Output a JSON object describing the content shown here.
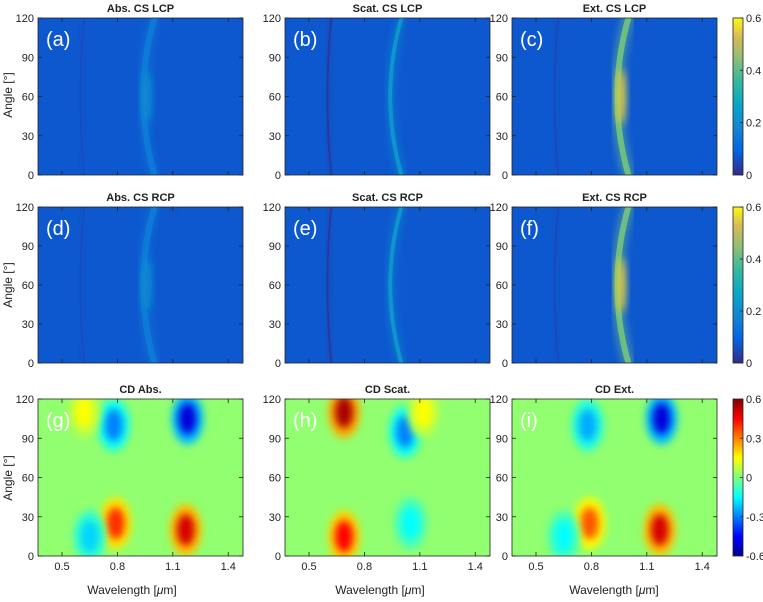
{
  "figure": {
    "rows": [
      {
        "colorbar": {
          "ticks": [
            "0.6",
            "0.4",
            "0.2",
            "0"
          ]
        }
      },
      {
        "colorbar": {
          "ticks": [
            "0.6",
            "0.4",
            "0.2",
            "0"
          ]
        }
      },
      {
        "colorbar": {
          "ticks": [
            "0.6",
            "0.3",
            "0",
            "-0.3",
            "-0.6"
          ]
        }
      }
    ],
    "ylabel": "Angle [°]",
    "ytick_labels": [
      "0",
      "30",
      "60",
      "90",
      "120"
    ],
    "xtick_labels": [
      "0.5",
      "0.8",
      "1.1",
      "1.4"
    ],
    "xlabel_prefix": "Wavelength [",
    "xlabel_mu": "μ",
    "xlabel_suffix": "m]",
    "panels": [
      {
        "title": "Abs. CS LCP",
        "tag": "(a)"
      },
      {
        "title": "Scat. CS LCP",
        "tag": "(b)"
      },
      {
        "title": "Ext. CS LCP",
        "tag": "(c)"
      },
      {
        "title": "Abs. CS RCP",
        "tag": "(d)"
      },
      {
        "title": "Scat. CS RCP",
        "tag": "(e)"
      },
      {
        "title": "Ext. CS RCP",
        "tag": "(f)"
      },
      {
        "title": "CD Abs.",
        "tag": "(g)"
      },
      {
        "title": "CD Scat.",
        "tag": "(h)"
      },
      {
        "title": "CD Ext.",
        "tag": "(i)"
      }
    ]
  },
  "chart_data": [
    {
      "type": "heatmap",
      "title": "Abs. CS LCP",
      "tag": "(a)",
      "xlabel": "",
      "ylabel": "Angle [°]",
      "xlim": [
        0.37,
        1.48
      ],
      "ylim": [
        0,
        120
      ],
      "colormap": "parula",
      "clim": [
        0,
        0.6
      ],
      "features": [
        {
          "kind": "ridge",
          "x_at_angle": {
            "0": 1.0,
            "60": 0.94,
            "120": 1.0
          },
          "peak_value": 0.2,
          "width": 0.045,
          "peak_angle": 60
        },
        {
          "kind": "ridge",
          "x_at_angle": {
            "0": 0.62,
            "60": 0.6,
            "120": 0.62
          },
          "peak_value": 0.07,
          "width": 0.012
        },
        {
          "kind": "ridge",
          "x_at_angle": {
            "30": 1.02,
            "0": 1.1
          },
          "peak_value": 0.09,
          "width": 0.03,
          "angle_range": [
            0,
            45
          ]
        }
      ]
    },
    {
      "type": "heatmap",
      "title": "Scat. CS LCP",
      "tag": "(b)",
      "xlabel": "",
      "ylabel": "",
      "xlim": [
        0.37,
        1.48
      ],
      "ylim": [
        0,
        120
      ],
      "colormap": "parula",
      "clim": [
        0,
        0.6
      ],
      "features": [
        {
          "kind": "ridge",
          "x_at_angle": {
            "0": 1.0,
            "60": 0.94,
            "120": 1.0
          },
          "peak_value": 0.3,
          "width": 0.03
        },
        {
          "kind": "ridge",
          "x_at_angle": {
            "0": 0.62,
            "60": 0.6,
            "120": 0.62
          },
          "peak_value": 0.03,
          "width": 0.015
        }
      ]
    },
    {
      "type": "heatmap",
      "title": "Ext. CS LCP",
      "tag": "(c)",
      "xlabel": "",
      "ylabel": "",
      "xlim": [
        0.37,
        1.48
      ],
      "ylim": [
        0,
        120
      ],
      "colormap": "parula",
      "clim": [
        0,
        0.6
      ],
      "features": [
        {
          "kind": "ridge",
          "x_at_angle": {
            "0": 1.0,
            "60": 0.94,
            "120": 1.0
          },
          "peak_value": 0.55,
          "width": 0.045,
          "peak_angle": 60
        },
        {
          "kind": "ridge",
          "x_at_angle": {
            "0": 0.62,
            "60": 0.6,
            "120": 0.62
          },
          "peak_value": 0.06,
          "width": 0.012
        }
      ]
    },
    {
      "type": "heatmap",
      "title": "Abs. CS RCP",
      "tag": "(d)",
      "xlabel": "",
      "ylabel": "Angle [°]",
      "xlim": [
        0.37,
        1.48
      ],
      "ylim": [
        0,
        120
      ],
      "colormap": "parula",
      "clim": [
        0,
        0.6
      ],
      "features": [
        {
          "kind": "ridge",
          "x_at_angle": {
            "0": 1.0,
            "60": 0.94,
            "120": 1.0
          },
          "peak_value": 0.2,
          "width": 0.045,
          "peak_angle": 60
        },
        {
          "kind": "ridge",
          "x_at_angle": {
            "0": 0.62,
            "60": 0.6,
            "120": 0.62
          },
          "peak_value": 0.07,
          "width": 0.012
        },
        {
          "kind": "ridge",
          "x_at_angle": {
            "90": 1.02,
            "120": 1.1
          },
          "peak_value": 0.09,
          "width": 0.03,
          "angle_range": [
            75,
            120
          ]
        }
      ]
    },
    {
      "type": "heatmap",
      "title": "Scat. CS RCP",
      "tag": "(e)",
      "xlabel": "",
      "ylabel": "",
      "xlim": [
        0.37,
        1.48
      ],
      "ylim": [
        0,
        120
      ],
      "colormap": "parula",
      "clim": [
        0,
        0.6
      ],
      "features": [
        {
          "kind": "ridge",
          "x_at_angle": {
            "0": 1.0,
            "60": 0.94,
            "120": 1.0
          },
          "peak_value": 0.3,
          "width": 0.03
        },
        {
          "kind": "ridge",
          "x_at_angle": {
            "0": 0.62,
            "60": 0.6,
            "120": 0.62
          },
          "peak_value": 0.03,
          "width": 0.015
        }
      ]
    },
    {
      "type": "heatmap",
      "title": "Ext. CS RCP",
      "tag": "(f)",
      "xlabel": "",
      "ylabel": "",
      "xlim": [
        0.37,
        1.48
      ],
      "ylim": [
        0,
        120
      ],
      "colormap": "parula",
      "clim": [
        0,
        0.6
      ],
      "features": [
        {
          "kind": "ridge",
          "x_at_angle": {
            "0": 1.0,
            "60": 0.94,
            "120": 1.0
          },
          "peak_value": 0.55,
          "width": 0.045,
          "peak_angle": 60
        },
        {
          "kind": "ridge",
          "x_at_angle": {
            "0": 0.62,
            "60": 0.6,
            "120": 0.62
          },
          "peak_value": 0.06,
          "width": 0.012
        }
      ]
    },
    {
      "type": "heatmap",
      "title": "CD Abs.",
      "tag": "(g)",
      "xlabel": "Wavelength [μm]",
      "ylabel": "Angle [°]",
      "xlim": [
        0.37,
        1.48
      ],
      "ylim": [
        0,
        120
      ],
      "colormap": "jet",
      "clim": [
        -0.6,
        0.6
      ],
      "features": [
        {
          "kind": "blob",
          "x": 1.17,
          "angle": 20,
          "value": 0.5
        },
        {
          "kind": "blob",
          "x": 0.79,
          "angle": 25,
          "value": 0.4
        },
        {
          "kind": "blob",
          "x": 1.18,
          "angle": 105,
          "value": -0.5
        },
        {
          "kind": "blob",
          "x": 0.78,
          "angle": 100,
          "value": -0.3
        },
        {
          "kind": "blob",
          "x": 0.65,
          "angle": 15,
          "value": -0.2
        },
        {
          "kind": "blob",
          "x": 0.62,
          "angle": 110,
          "value": 0.15
        }
      ]
    },
    {
      "type": "heatmap",
      "title": "CD Scat.",
      "tag": "(h)",
      "xlabel": "Wavelength [μm]",
      "ylabel": "",
      "xlim": [
        0.37,
        1.48
      ],
      "ylim": [
        0,
        120
      ],
      "colormap": "jet",
      "clim": [
        -0.6,
        0.6
      ],
      "features": [
        {
          "kind": "blob",
          "x": 0.69,
          "angle": 110,
          "value": 0.55
        },
        {
          "kind": "blob",
          "x": 0.69,
          "angle": 15,
          "value": 0.45
        },
        {
          "kind": "blob",
          "x": 1.02,
          "angle": 95,
          "value": -0.3
        },
        {
          "kind": "blob",
          "x": 1.05,
          "angle": 25,
          "value": -0.15
        },
        {
          "kind": "blob",
          "x": 1.12,
          "angle": 110,
          "value": 0.15
        }
      ]
    },
    {
      "type": "heatmap",
      "title": "CD Ext.",
      "tag": "(i)",
      "xlabel": "Wavelength [μm]",
      "ylabel": "",
      "xlim": [
        0.37,
        1.48
      ],
      "ylim": [
        0,
        120
      ],
      "colormap": "jet",
      "clim": [
        -0.6,
        0.6
      ],
      "features": [
        {
          "kind": "blob",
          "x": 1.17,
          "angle": 20,
          "value": 0.5
        },
        {
          "kind": "blob",
          "x": 0.79,
          "angle": 25,
          "value": 0.35
        },
        {
          "kind": "blob",
          "x": 1.18,
          "angle": 105,
          "value": -0.5
        },
        {
          "kind": "blob",
          "x": 0.78,
          "angle": 100,
          "value": -0.25
        },
        {
          "kind": "blob",
          "x": 0.65,
          "angle": 15,
          "value": -0.15
        }
      ]
    }
  ]
}
